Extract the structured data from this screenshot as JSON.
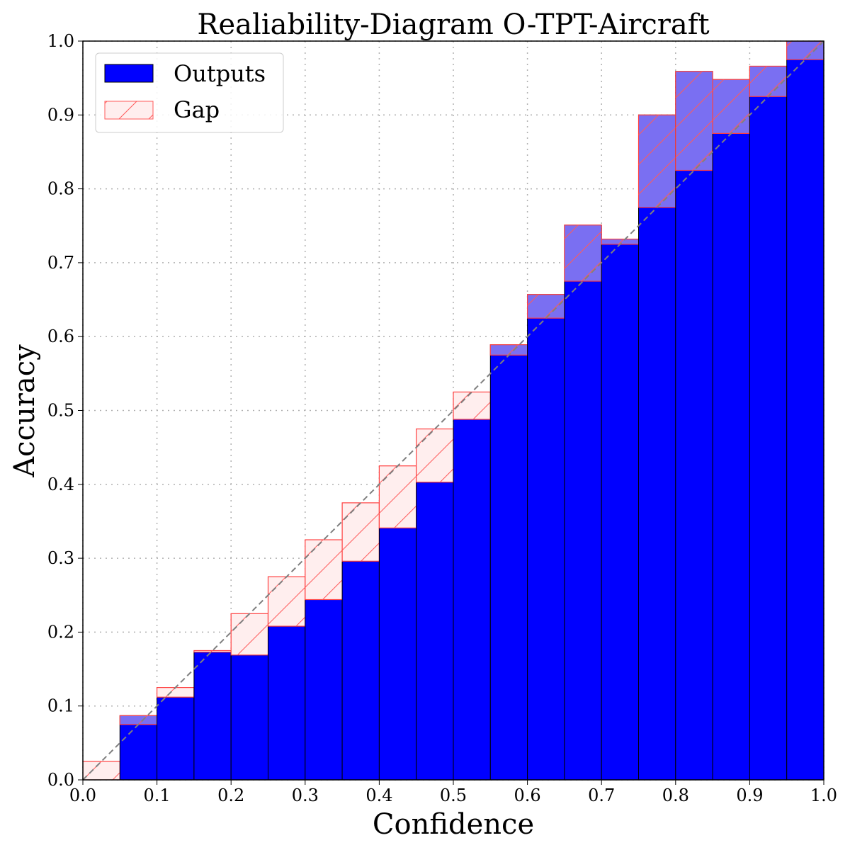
{
  "chart_data": {
    "type": "bar",
    "title": "Realiability-Diagram O-TPT-Aircraft",
    "xlabel": "Confidence",
    "ylabel": "Accuracy",
    "xlim": [
      0.0,
      1.0
    ],
    "ylim": [
      0.0,
      1.0
    ],
    "xticks": [
      "0.0",
      "0.1",
      "0.2",
      "0.3",
      "0.4",
      "0.5",
      "0.6",
      "0.7",
      "0.8",
      "0.9",
      "1.0"
    ],
    "yticks": [
      "0.0",
      "0.1",
      "0.2",
      "0.3",
      "0.4",
      "0.5",
      "0.6",
      "0.7",
      "0.8",
      "0.9",
      "1.0"
    ],
    "grid": true,
    "legend_position": "top-left",
    "bin_width": 0.05,
    "bin_centers": [
      0.025,
      0.075,
      0.125,
      0.175,
      0.225,
      0.275,
      0.325,
      0.375,
      0.425,
      0.475,
      0.525,
      0.575,
      0.625,
      0.675,
      0.725,
      0.775,
      0.825,
      0.875,
      0.925,
      0.975
    ],
    "series": [
      {
        "name": "Outputs",
        "color": "#0000ff",
        "values": [
          0.0,
          0.087,
          0.112,
          0.173,
          0.169,
          0.208,
          0.244,
          0.296,
          0.341,
          0.403,
          0.488,
          0.589,
          0.657,
          0.751,
          0.732,
          0.9,
          0.959,
          0.948,
          0.966,
          1.0
        ]
      },
      {
        "name": "Gap",
        "color": "#ff0000",
        "description_from": "bin_centers"
      }
    ],
    "diagonal": {
      "style": "dashed",
      "color": "#808080"
    }
  }
}
